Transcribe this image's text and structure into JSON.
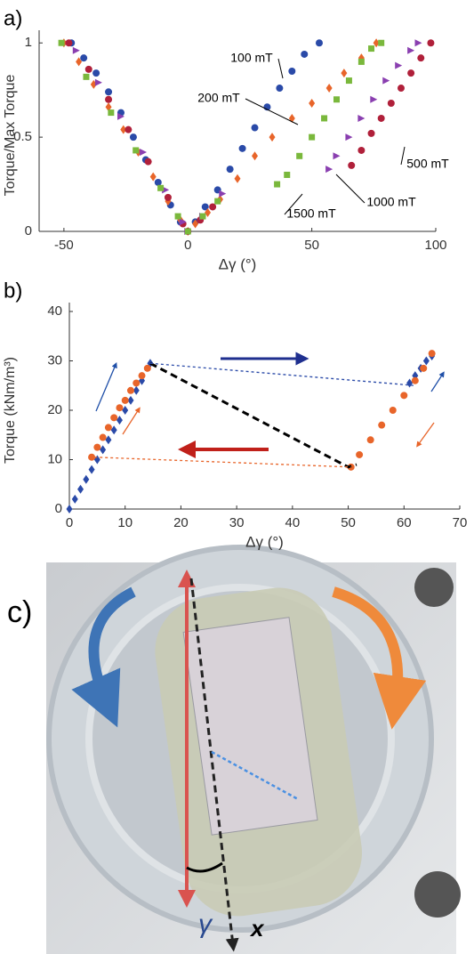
{
  "chart_data": [
    {
      "type": "scatter",
      "panel": "a)",
      "xlabel": "Δγ (°)",
      "ylabel": "Torque/Max Torque",
      "xlim": [
        -60,
        100
      ],
      "ylim": [
        0,
        1.02
      ],
      "xticks": [
        -50,
        0,
        50,
        100
      ],
      "yticks": [
        0,
        0.5,
        1
      ],
      "series": [
        {
          "name": "100 mT",
          "color": "#2a4aa8",
          "marker": "circle",
          "x": [
            -47,
            -42,
            -37,
            -32,
            -27,
            -22,
            -17,
            -12,
            -7,
            -3,
            0,
            3,
            7,
            12,
            17,
            22,
            27,
            32,
            37,
            42,
            47,
            53
          ],
          "values": [
            1,
            0.92,
            0.84,
            0.74,
            0.63,
            0.5,
            0.38,
            0.26,
            0.14,
            0.05,
            0,
            0.05,
            0.13,
            0.22,
            0.33,
            0.44,
            0.55,
            0.66,
            0.76,
            0.85,
            0.94,
            1
          ]
        },
        {
          "name": "200 mT",
          "color": "#e8652a",
          "marker": "diamond",
          "x": [
            -50,
            -44,
            -38,
            -32,
            -26,
            -20,
            -14,
            -8,
            -3,
            0,
            3,
            8,
            13,
            20,
            27,
            34,
            42,
            50,
            57,
            63,
            70,
            76
          ],
          "values": [
            1,
            0.9,
            0.78,
            0.66,
            0.54,
            0.42,
            0.29,
            0.16,
            0.06,
            0,
            0.04,
            0.1,
            0.17,
            0.28,
            0.4,
            0.5,
            0.6,
            0.68,
            0.76,
            0.84,
            0.92,
            1
          ]
        },
        {
          "name": "500 mT",
          "color": "#b0203a",
          "marker": "circle",
          "x": [
            -48,
            -40,
            -32,
            -24,
            -16,
            -8,
            -2,
            0,
            5,
            10,
            66,
            70,
            74,
            78,
            82,
            86,
            90,
            94,
            98
          ],
          "values": [
            1,
            0.86,
            0.7,
            0.54,
            0.37,
            0.18,
            0.04,
            0,
            0.06,
            0.13,
            0.35,
            0.43,
            0.52,
            0.6,
            0.68,
            0.76,
            0.84,
            0.92,
            1
          ]
        },
        {
          "name": "1000 mT",
          "color": "#8a3fb0",
          "marker": "triangle",
          "x": [
            -45,
            -36,
            -27,
            -18,
            -9,
            -2,
            0,
            6,
            14,
            57,
            60,
            65,
            70,
            75,
            80,
            85,
            90,
            93
          ],
          "values": [
            0.96,
            0.79,
            0.61,
            0.42,
            0.22,
            0.05,
            0,
            0.08,
            0.2,
            0.33,
            0.4,
            0.5,
            0.6,
            0.7,
            0.8,
            0.88,
            0.96,
            1
          ]
        },
        {
          "name": "1500 mT",
          "color": "#7ab83c",
          "marker": "square",
          "x": [
            -51,
            -41,
            -31,
            -21,
            -11,
            -4,
            0,
            6,
            12,
            36,
            40,
            45,
            50,
            55,
            60,
            65,
            70,
            74,
            78
          ],
          "values": [
            1,
            0.82,
            0.63,
            0.43,
            0.23,
            0.08,
            0,
            0.08,
            0.16,
            0.25,
            0.3,
            0.4,
            0.5,
            0.6,
            0.7,
            0.8,
            0.9,
            0.97,
            1
          ]
        }
      ]
    },
    {
      "type": "scatter",
      "panel": "b)",
      "xlabel": "Δγ (°)",
      "ylabel": "Torque (kNm/m³)",
      "xlim": [
        0,
        70
      ],
      "ylim": [
        0,
        40
      ],
      "xticks": [
        0,
        10,
        20,
        30,
        40,
        50,
        60,
        70
      ],
      "yticks": [
        0,
        10,
        20,
        30,
        40
      ],
      "series": [
        {
          "color": "#2a4aa8",
          "marker": "diamond",
          "x": [
            0,
            1,
            2,
            3,
            4,
            5,
            6,
            7,
            8,
            9,
            10,
            11,
            12,
            13,
            14.5,
            61,
            62,
            63,
            64,
            65
          ],
          "values": [
            0,
            2,
            4,
            6,
            8,
            10,
            12,
            14,
            16,
            18,
            20,
            22,
            24,
            26,
            29.5,
            25.5,
            27,
            28.5,
            30,
            31
          ]
        },
        {
          "color": "#e8652a",
          "marker": "circle",
          "x": [
            4,
            5,
            6,
            7,
            8,
            9,
            10,
            11,
            12,
            13,
            14,
            50.5,
            52,
            54,
            56,
            58,
            60,
            62,
            63.5,
            65
          ],
          "values": [
            10.5,
            12.5,
            14.5,
            16.5,
            18.5,
            20.5,
            22,
            24,
            25.5,
            27,
            28.5,
            8.5,
            11,
            14,
            17,
            20,
            23,
            26,
            28.5,
            31.5
          ]
        },
        {
          "color": "#000000",
          "marker": "dashed",
          "x": [
            14.5,
            50,
            51.5
          ],
          "values": [
            29.5,
            8.5,
            9
          ]
        },
        {
          "color": "#2a4aa8",
          "marker": "dotted",
          "x": [
            14.5,
            62
          ],
          "values": [
            29.5,
            25
          ]
        },
        {
          "color": "#e8652a",
          "marker": "dotted",
          "x": [
            4.5,
            50.5
          ],
          "values": [
            10.5,
            8.5
          ]
        }
      ]
    }
  ],
  "photo": {
    "panel": "c)",
    "angle_label": "γ",
    "axis_label": "x"
  }
}
